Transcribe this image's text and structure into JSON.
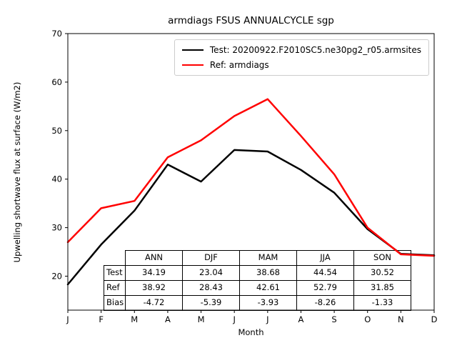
{
  "chart_data": {
    "type": "line",
    "title": "armdiags FSUS ANNUALCYCLE sgp",
    "xlabel": "Month",
    "ylabel": "Upwelling shortwave flux at surface (W/m2)",
    "x_ticks": [
      "J",
      "F",
      "M",
      "A",
      "M",
      "J",
      "J",
      "A",
      "S",
      "O",
      "N",
      "D"
    ],
    "y_ticks": [
      20,
      30,
      40,
      50,
      60,
      70
    ],
    "ylim": [
      13,
      70
    ],
    "grid": false,
    "legend_position": "upper center",
    "series": [
      {
        "name": "Test: 20200922.F2010SC5.ne30pg2_r05.armsites",
        "color": "#000000",
        "values": [
          18.3,
          26.5,
          33.5,
          43.0,
          39.5,
          46.0,
          45.7,
          41.9,
          37.2,
          29.7,
          24.6,
          24.3
        ]
      },
      {
        "name": "Ref: armdiags",
        "color": "#ff0000",
        "values": [
          27.0,
          34.0,
          35.5,
          44.5,
          48.0,
          53.0,
          56.5,
          48.9,
          41.0,
          30.0,
          24.5,
          24.2
        ]
      }
    ]
  },
  "table": {
    "columns": [
      "ANN",
      "DJF",
      "MAM",
      "JJA",
      "SON"
    ],
    "rows": [
      {
        "label": "Test",
        "values": [
          "34.19",
          "23.04",
          "38.68",
          "44.54",
          "30.52"
        ]
      },
      {
        "label": "Ref",
        "values": [
          "38.92",
          "28.43",
          "42.61",
          "52.79",
          "31.85"
        ]
      },
      {
        "label": "Bias",
        "values": [
          "-4.72",
          "-5.39",
          "-3.93",
          "-8.26",
          "-1.33"
        ]
      }
    ]
  }
}
